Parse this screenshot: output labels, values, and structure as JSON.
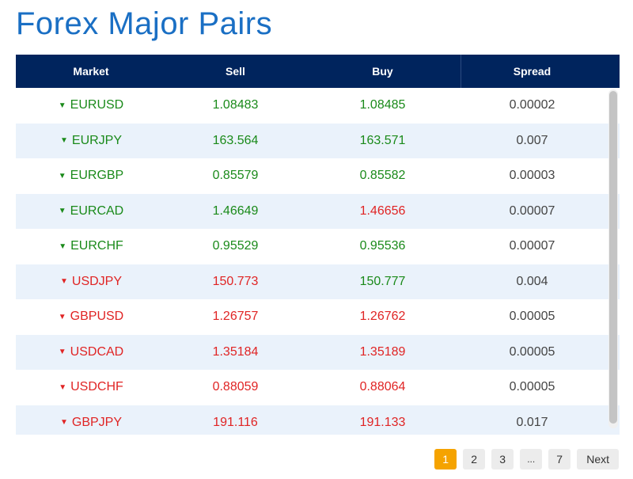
{
  "title": "Forex Major Pairs",
  "table": {
    "headers": [
      "Market",
      "Sell",
      "Buy",
      "Spread"
    ],
    "rows": [
      {
        "market": "EURUSD",
        "dir": "up",
        "sell": "1.08483",
        "sell_dir": "up",
        "buy": "1.08485",
        "buy_dir": "up",
        "spread": "0.00002"
      },
      {
        "market": "EURJPY",
        "dir": "up",
        "sell": "163.564",
        "sell_dir": "up",
        "buy": "163.571",
        "buy_dir": "up",
        "spread": "0.007"
      },
      {
        "market": "EURGBP",
        "dir": "up",
        "sell": "0.85579",
        "sell_dir": "up",
        "buy": "0.85582",
        "buy_dir": "up",
        "spread": "0.00003"
      },
      {
        "market": "EURCAD",
        "dir": "up",
        "sell": "1.46649",
        "sell_dir": "up",
        "buy": "1.46656",
        "buy_dir": "down",
        "spread": "0.00007"
      },
      {
        "market": "EURCHF",
        "dir": "up",
        "sell": "0.95529",
        "sell_dir": "up",
        "buy": "0.95536",
        "buy_dir": "up",
        "spread": "0.00007"
      },
      {
        "market": "USDJPY",
        "dir": "down",
        "sell": "150.773",
        "sell_dir": "down",
        "buy": "150.777",
        "buy_dir": "up",
        "spread": "0.004"
      },
      {
        "market": "GBPUSD",
        "dir": "down",
        "sell": "1.26757",
        "sell_dir": "down",
        "buy": "1.26762",
        "buy_dir": "down",
        "spread": "0.00005"
      },
      {
        "market": "USDCAD",
        "dir": "down",
        "sell": "1.35184",
        "sell_dir": "down",
        "buy": "1.35189",
        "buy_dir": "down",
        "spread": "0.00005"
      },
      {
        "market": "USDCHF",
        "dir": "down",
        "sell": "0.88059",
        "sell_dir": "down",
        "buy": "0.88064",
        "buy_dir": "down",
        "spread": "0.00005"
      },
      {
        "market": "GBPJPY",
        "dir": "down",
        "sell": "191.116",
        "sell_dir": "down",
        "buy": "191.133",
        "buy_dir": "down",
        "spread": "0.017"
      }
    ]
  },
  "pagination": {
    "pages": [
      "1",
      "2",
      "3",
      "...",
      "7"
    ],
    "current": "1",
    "next_label": "Next"
  },
  "colors": {
    "header_bg": "#00245d",
    "title": "#1a6fc4",
    "up": "#1a8a1a",
    "down": "#e02424",
    "alt_row": "#eaf2fb",
    "active_page": "#f5a300"
  },
  "icons": {
    "up": "caret-down-icon",
    "down": "caret-down-icon"
  }
}
